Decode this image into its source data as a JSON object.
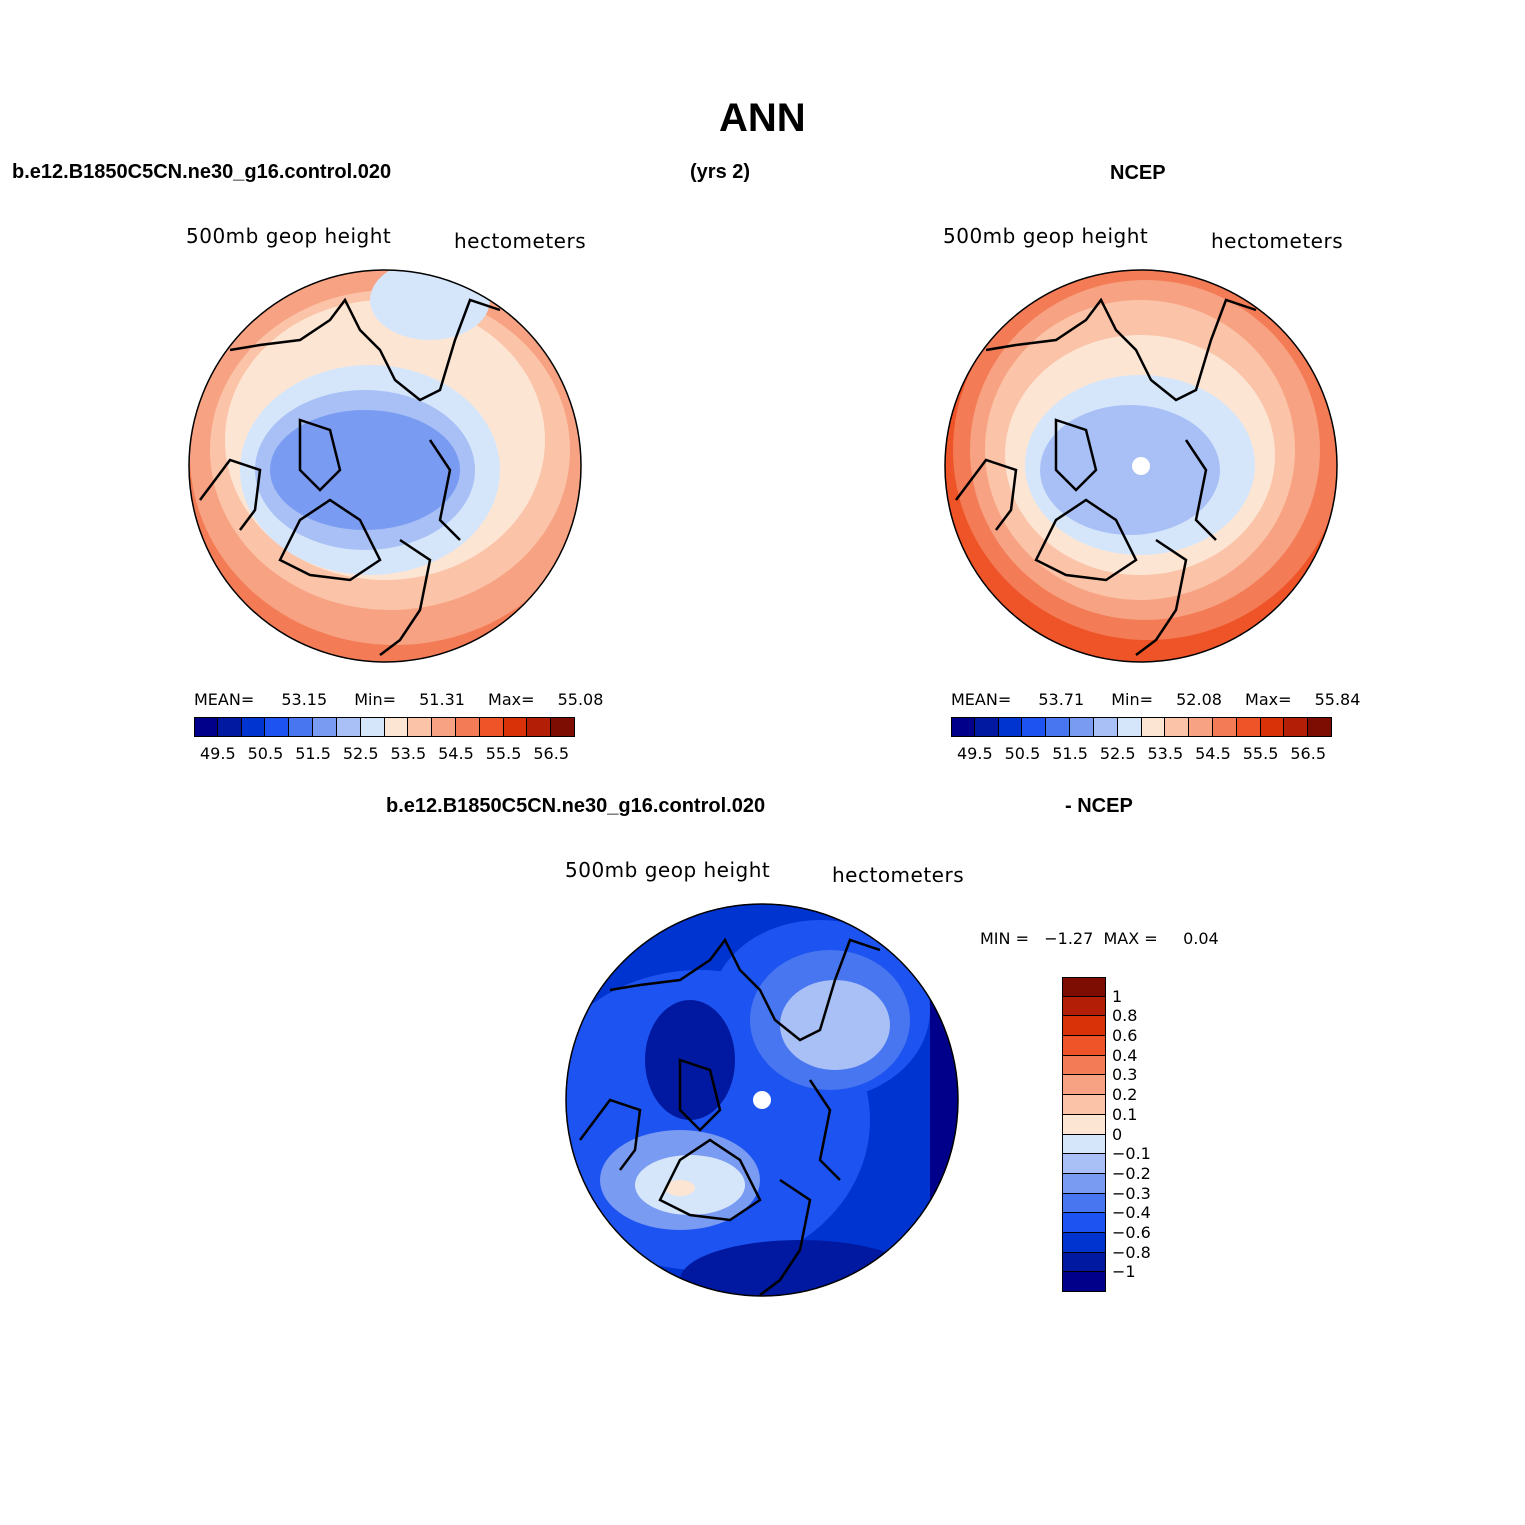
{
  "figure_title": "ANN",
  "panel1": {
    "case_name": "b.e12.B1850C5CN.ne30_g16.control.020",
    "years_label": "(yrs 2)",
    "variable": "500mb  geop  height",
    "units": "hectometers",
    "stats": {
      "mean_label": "MEAN=",
      "mean": "53.15",
      "min_label": "Min=",
      "min": "51.31",
      "max_label": "Max=",
      "max": "55.08"
    }
  },
  "panel2": {
    "case_name": "NCEP",
    "variable": "500mb  geop  height",
    "units": "hectometers",
    "stats": {
      "mean_label": "MEAN=",
      "mean": "53.71",
      "min_label": "Min=",
      "min": "52.08",
      "max_label": "Max=",
      "max": "55.84"
    }
  },
  "panel3": {
    "case_name": "b.e12.B1850C5CN.ne30_g16.control.020",
    "subtitle": "- NCEP",
    "variable": "500mb  geop  height",
    "units": "hectometers",
    "stats_text": "MIN =   −1.27  MAX =     0.04"
  },
  "colorbar_height": {
    "colors": [
      "#00008b",
      "#0019a0",
      "#0034d0",
      "#1d53f0",
      "#4876f0",
      "#7a9bf2",
      "#a8c0f5",
      "#d5e6fb",
      "#fde5d4",
      "#fbc3a7",
      "#f7a282",
      "#f37c56",
      "#ee5427",
      "#d93209",
      "#b31f06",
      "#7d0d03"
    ],
    "ticks": [
      "49.5",
      "50.5",
      "51.5",
      "52.5",
      "53.5",
      "54.5",
      "55.5",
      "56.5"
    ]
  },
  "colorbar_diff": {
    "colors": [
      "#00008b",
      "#0019a0",
      "#0034d0",
      "#1d53f0",
      "#4876f0",
      "#7a9bf2",
      "#a8c0f5",
      "#d5e6fb",
      "#fde5d4",
      "#fbc3a7",
      "#f7a282",
      "#f37c56",
      "#ee5427",
      "#d93209",
      "#b31f06",
      "#7d0d03"
    ],
    "ticks": [
      "−1",
      "−0.8",
      "−0.6",
      "−0.4",
      "−0.3",
      "−0.2",
      "−0.1",
      "0",
      "0.1",
      "0.2",
      "0.3",
      "0.4",
      "0.6",
      "0.8",
      "1"
    ]
  },
  "colors": {
    "pole_marker": "#ffffff",
    "coastline": "#000000"
  }
}
